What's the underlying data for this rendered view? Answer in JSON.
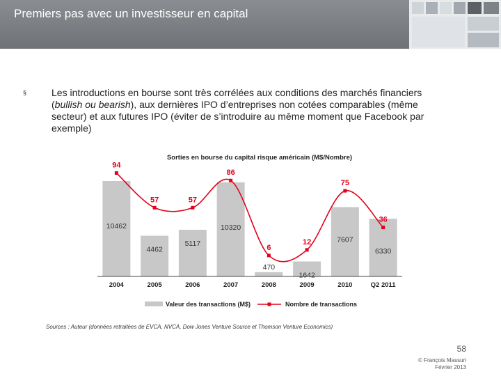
{
  "header": {
    "title": "Premiers pas avec un investisseur en capital"
  },
  "bullet": {
    "marker": "§",
    "text_before": "Les introductions en bourse sont très corrélées aux conditions des marchés financiers (",
    "text_italic": "bullish ou bearish",
    "text_after": "), aux dernières IPO d’entreprises non cotées comparables (même secteur) et aux futures IPO (éviter de s’introduire au même moment que Facebook par exemple)"
  },
  "chart_data": {
    "type": "bar",
    "title": "Sorties en bourse du capital risque américain (M$/Nombre)",
    "categories": [
      "2004",
      "2005",
      "2006",
      "2007",
      "2008",
      "2009",
      "2010",
      "Q2 2011"
    ],
    "series": [
      {
        "name": "Valeur des transactions (M$)",
        "type": "bar",
        "color": "#c8c8c8",
        "values": [
          10462,
          4462,
          5117,
          10320,
          470,
          1642,
          7607,
          6330
        ]
      },
      {
        "name": "Nombre de transactions",
        "type": "line",
        "color": "#e2001a",
        "values": [
          94,
          57,
          57,
          86,
          6,
          12,
          75,
          36
        ]
      }
    ],
    "bar_ylim": [
      0,
      11000
    ],
    "line_ylim": [
      0,
      100
    ],
    "legend_position": "bottom",
    "grid": false
  },
  "footer": {
    "sources": "Sources : Auteur (données retraitées de EVCA, NVCA, Dow Jones Venture Source et Thomson Venture Economics)",
    "page_number": "58",
    "copyright_line1": "© François Massuri",
    "copyright_line2": "Février 2013"
  }
}
